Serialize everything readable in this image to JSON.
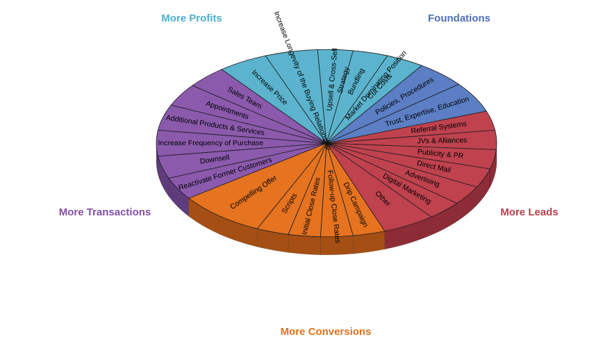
{
  "chart_data": {
    "type": "pie",
    "title": "",
    "groups": [
      {
        "name": "Foundations",
        "color": "#5b7ec4",
        "side": "#3f5a93",
        "items": [
          "Strategy",
          "Market Dominating Position",
          "Policies, Procedures",
          "Trust, Expertise, Education"
        ]
      },
      {
        "name": "More Leads",
        "color": "#c0424f",
        "side": "#8d2c37",
        "items": [
          "Referral Systems",
          "JVs & Alliances",
          "Publicity & PR",
          "Direct Mail",
          "Advertising",
          "Digital Marketing",
          "Other"
        ]
      },
      {
        "name": "More Conversions",
        "color": "#e57320",
        "side": "#a64f14",
        "items": [
          "Drip Campaign",
          "Follow-up Close Rates",
          "Initial Close Rates",
          "Scripts",
          "Compelling Offer"
        ]
      },
      {
        "name": "More Transactions",
        "color": "#8b5aad",
        "side": "#5f3d7c",
        "items": [
          "Reactivate Former Customers",
          "Downsell",
          "Increase Frequency of Purchase",
          "Additional Products & Services",
          "Appointments",
          "Sales Team"
        ]
      },
      {
        "name": "More Profits",
        "color": "#5bb3cd",
        "side": "#3c8aa2",
        "items": [
          "Increase Price",
          "Increase Longevity of the Buying Relationship",
          "Upsell & Cross-Sell",
          "Bundling",
          "Cut Costs"
        ]
      }
    ]
  }
}
